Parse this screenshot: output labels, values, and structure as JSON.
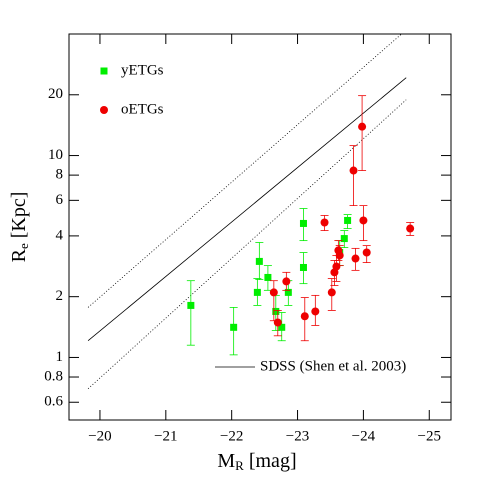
{
  "chart_data": {
    "type": "scatter",
    "x_title": {
      "main": "M",
      "sub": "R",
      "unit": "[mag]"
    },
    "y_title": {
      "main": "R",
      "sub": "e",
      "unit": "[Kpc]"
    },
    "xlim": [
      -19.53,
      -25.33
    ],
    "ylim": [
      0.49,
      40
    ],
    "log_y": true,
    "xticks": [
      {
        "value": -20,
        "label": "−20"
      },
      {
        "value": -21,
        "label": "−21"
      },
      {
        "value": -22,
        "label": "−22"
      },
      {
        "value": -23,
        "label": "−23"
      },
      {
        "value": -24,
        "label": "−24"
      },
      {
        "value": -25,
        "label": "−25"
      }
    ],
    "yticks": [
      0.6,
      0.8,
      1,
      2,
      4,
      6,
      8,
      10,
      20
    ],
    "series": [
      {
        "name": "yETGs",
        "color": "#00ee00",
        "marker": "square",
        "x": [
          -21.38,
          -22.03,
          -22.39,
          -22.42,
          -22.55,
          -22.67,
          -22.76,
          -22.86,
          -23.09,
          -23.09,
          -23.71,
          -23.64,
          -23.76
        ],
        "y": [
          1.81,
          1.41,
          2.1,
          2.99,
          2.49,
          1.69,
          1.41,
          2.1,
          2.79,
          4.61,
          3.88,
          3.31,
          4.77
        ],
        "y_low": [
          1.15,
          1.03,
          1.81,
          2.43,
          2.15,
          1.36,
          1.21,
          1.81,
          2.32,
          3.79,
          3.5,
          2.85,
          4.35
        ],
        "y_high": [
          2.4,
          1.77,
          2.46,
          3.71,
          2.85,
          2.03,
          1.67,
          2.4,
          3.31,
          5.47,
          4.25,
          3.79,
          5.1
        ]
      },
      {
        "name": "oETGs",
        "color": "#ee0000",
        "marker": "circle",
        "x": [
          -22.64,
          -22.7,
          -22.83,
          -23.11,
          -23.27,
          -23.41,
          -23.52,
          -23.56,
          -23.59,
          -23.62,
          -23.64,
          -23.85,
          -23.88,
          -23.98,
          -24.0,
          -24.05,
          -24.71
        ],
        "y": [
          2.1,
          1.49,
          2.38,
          1.6,
          1.69,
          4.66,
          2.1,
          2.64,
          2.82,
          3.39,
          3.2,
          8.43,
          3.09,
          13.9,
          4.77,
          3.31,
          4.35
        ],
        "y_low": [
          1.52,
          1.28,
          2.15,
          1.21,
          1.44,
          4.25,
          1.71,
          2.27,
          2.38,
          3.02,
          2.85,
          5.65,
          2.7,
          8.43,
          3.79,
          2.95,
          4.02
        ],
        "y_high": [
          2.4,
          1.71,
          2.64,
          1.98,
          2.03,
          5.05,
          2.46,
          3.02,
          3.2,
          3.79,
          3.58,
          11.2,
          3.47,
          19.8,
          5.65,
          3.58,
          4.66
        ]
      }
    ],
    "reference_lines": [
      {
        "name": "SDSS (Shen et al. 2003)",
        "style": "solid",
        "x": [
          -19.82,
          -24.65
        ],
        "y": [
          1.21,
          24.3
        ]
      },
      {
        "style": "dotted",
        "x": [
          -19.82,
          -24.65
        ],
        "y": [
          1.77,
          41.9
        ]
      },
      {
        "style": "dotted",
        "x": [
          -19.82,
          -24.65
        ],
        "y": [
          0.7,
          18.9
        ]
      }
    ]
  }
}
